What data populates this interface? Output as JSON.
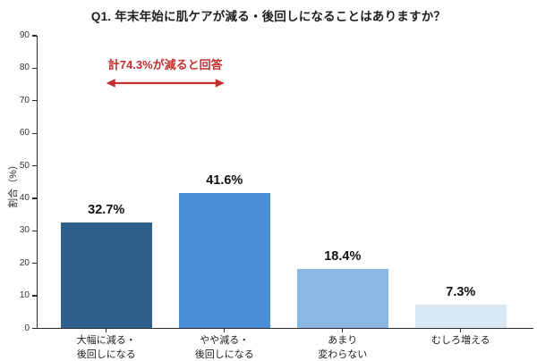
{
  "chart_data": {
    "type": "bar",
    "title": "Q1. 年末年始に肌ケアが減る・後回しになることはありますか？",
    "ylabel": "割合（%）",
    "xlabel": "",
    "ylim": [
      0,
      90
    ],
    "ytick_step": 10,
    "grid": false,
    "legend": "none",
    "categories": [
      "大幅に減る・\n後回しになる",
      "やや減る・\n後回しになる",
      "あまり\n変わらない",
      "むしろ増える"
    ],
    "values": [
      32.7,
      41.6,
      18.4,
      7.3
    ],
    "value_labels": [
      "32.7%",
      "41.6%",
      "18.4%",
      "7.3%"
    ],
    "bar_colors": [
      "#2f5f8d",
      "#4a8ed8",
      "#8bb8e2",
      "#d9e8f5"
    ],
    "annotation": {
      "text": "計74.3%が減ると回答",
      "color": "#c62f2f",
      "spans_categories": [
        0,
        1
      ]
    }
  },
  "colors": {
    "background": "#ffffff",
    "axis": "#2a2a2a",
    "tick_label": "#333333",
    "title_text": "#1f1f1f",
    "value_label": "#111111"
  }
}
